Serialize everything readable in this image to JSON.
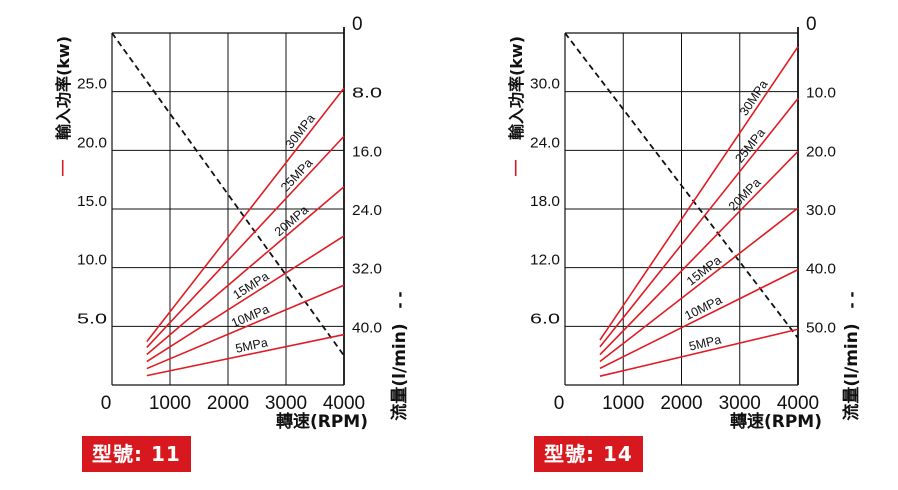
{
  "chart_data": [
    {
      "type": "line",
      "model_label": "型號: 11",
      "xlabel": "轉速(RPM)",
      "ylabel_left": "輸入功率(kw)",
      "ylabel_left_marker": "—",
      "ylabel_right": "流量(l/min)",
      "ylabel_right_marker": "- -",
      "x_ticks": [
        "0",
        "1000",
        "2000",
        "3000",
        "4000"
      ],
      "xlim": [
        0,
        4000
      ],
      "y_left_ticks": [
        "5.0",
        "10.0",
        "15.0",
        "20.0",
        "25.0"
      ],
      "ylim_left": [
        0,
        30
      ],
      "y_right_ticks": [
        "0",
        "8.0",
        "16.0",
        "24.0",
        "32.0",
        "40.0"
      ],
      "ylim_right": [
        48,
        0
      ],
      "grid": true,
      "power_series": [
        {
          "name": "30MPa",
          "x": [
            600,
            4000
          ],
          "y": [
            3.7,
            25.3
          ]
        },
        {
          "name": "25MPa",
          "x": [
            600,
            4000
          ],
          "y": [
            3.2,
            21.2
          ]
        },
        {
          "name": "20MPa",
          "x": [
            600,
            4000
          ],
          "y": [
            2.6,
            16.9
          ]
        },
        {
          "name": "15MPa",
          "x": [
            600,
            4000
          ],
          "y": [
            2.0,
            12.7
          ]
        },
        {
          "name": "10MPa",
          "x": [
            600,
            4000
          ],
          "y": [
            1.4,
            8.5
          ]
        },
        {
          "name": "5MPa",
          "x": [
            600,
            4000
          ],
          "y": [
            0.8,
            4.3
          ]
        }
      ],
      "flow_series": {
        "x": [
          0,
          4000
        ],
        "y": [
          0,
          44
        ]
      }
    },
    {
      "type": "line",
      "model_label": "型號: 14",
      "xlabel": "轉速(RPM)",
      "ylabel_left": "輸入功率(kw)",
      "ylabel_left_marker": "—",
      "ylabel_right": "流量(l/min)",
      "ylabel_right_marker": "- -",
      "x_ticks": [
        "0",
        "1000",
        "2000",
        "3000",
        "4000"
      ],
      "xlim": [
        0,
        4000
      ],
      "y_left_ticks": [
        "6.0",
        "12.0",
        "18.0",
        "24.0",
        "30.0"
      ],
      "ylim_left": [
        0,
        36
      ],
      "y_right_ticks": [
        "0",
        "10.0",
        "20.0",
        "30.0",
        "40.0",
        "50.0"
      ],
      "ylim_right": [
        60,
        0
      ],
      "grid": true,
      "power_series": [
        {
          "name": "30MPa",
          "x": [
            600,
            4000
          ],
          "y": [
            4.6,
            34.6
          ]
        },
        {
          "name": "25MPa",
          "x": [
            600,
            4000
          ],
          "y": [
            3.9,
            29.3
          ]
        },
        {
          "name": "20MPa",
          "x": [
            600,
            4000
          ],
          "y": [
            3.1,
            23.9
          ]
        },
        {
          "name": "15MPa",
          "x": [
            600,
            4000
          ],
          "y": [
            2.4,
            18.1
          ]
        },
        {
          "name": "10MPa",
          "x": [
            600,
            4000
          ],
          "y": [
            1.7,
            11.8
          ]
        },
        {
          "name": "5MPa",
          "x": [
            600,
            4000
          ],
          "y": [
            0.9,
            5.7
          ]
        }
      ],
      "flow_series": {
        "x": [
          0,
          4000
        ],
        "y": [
          0,
          52
        ]
      }
    }
  ]
}
